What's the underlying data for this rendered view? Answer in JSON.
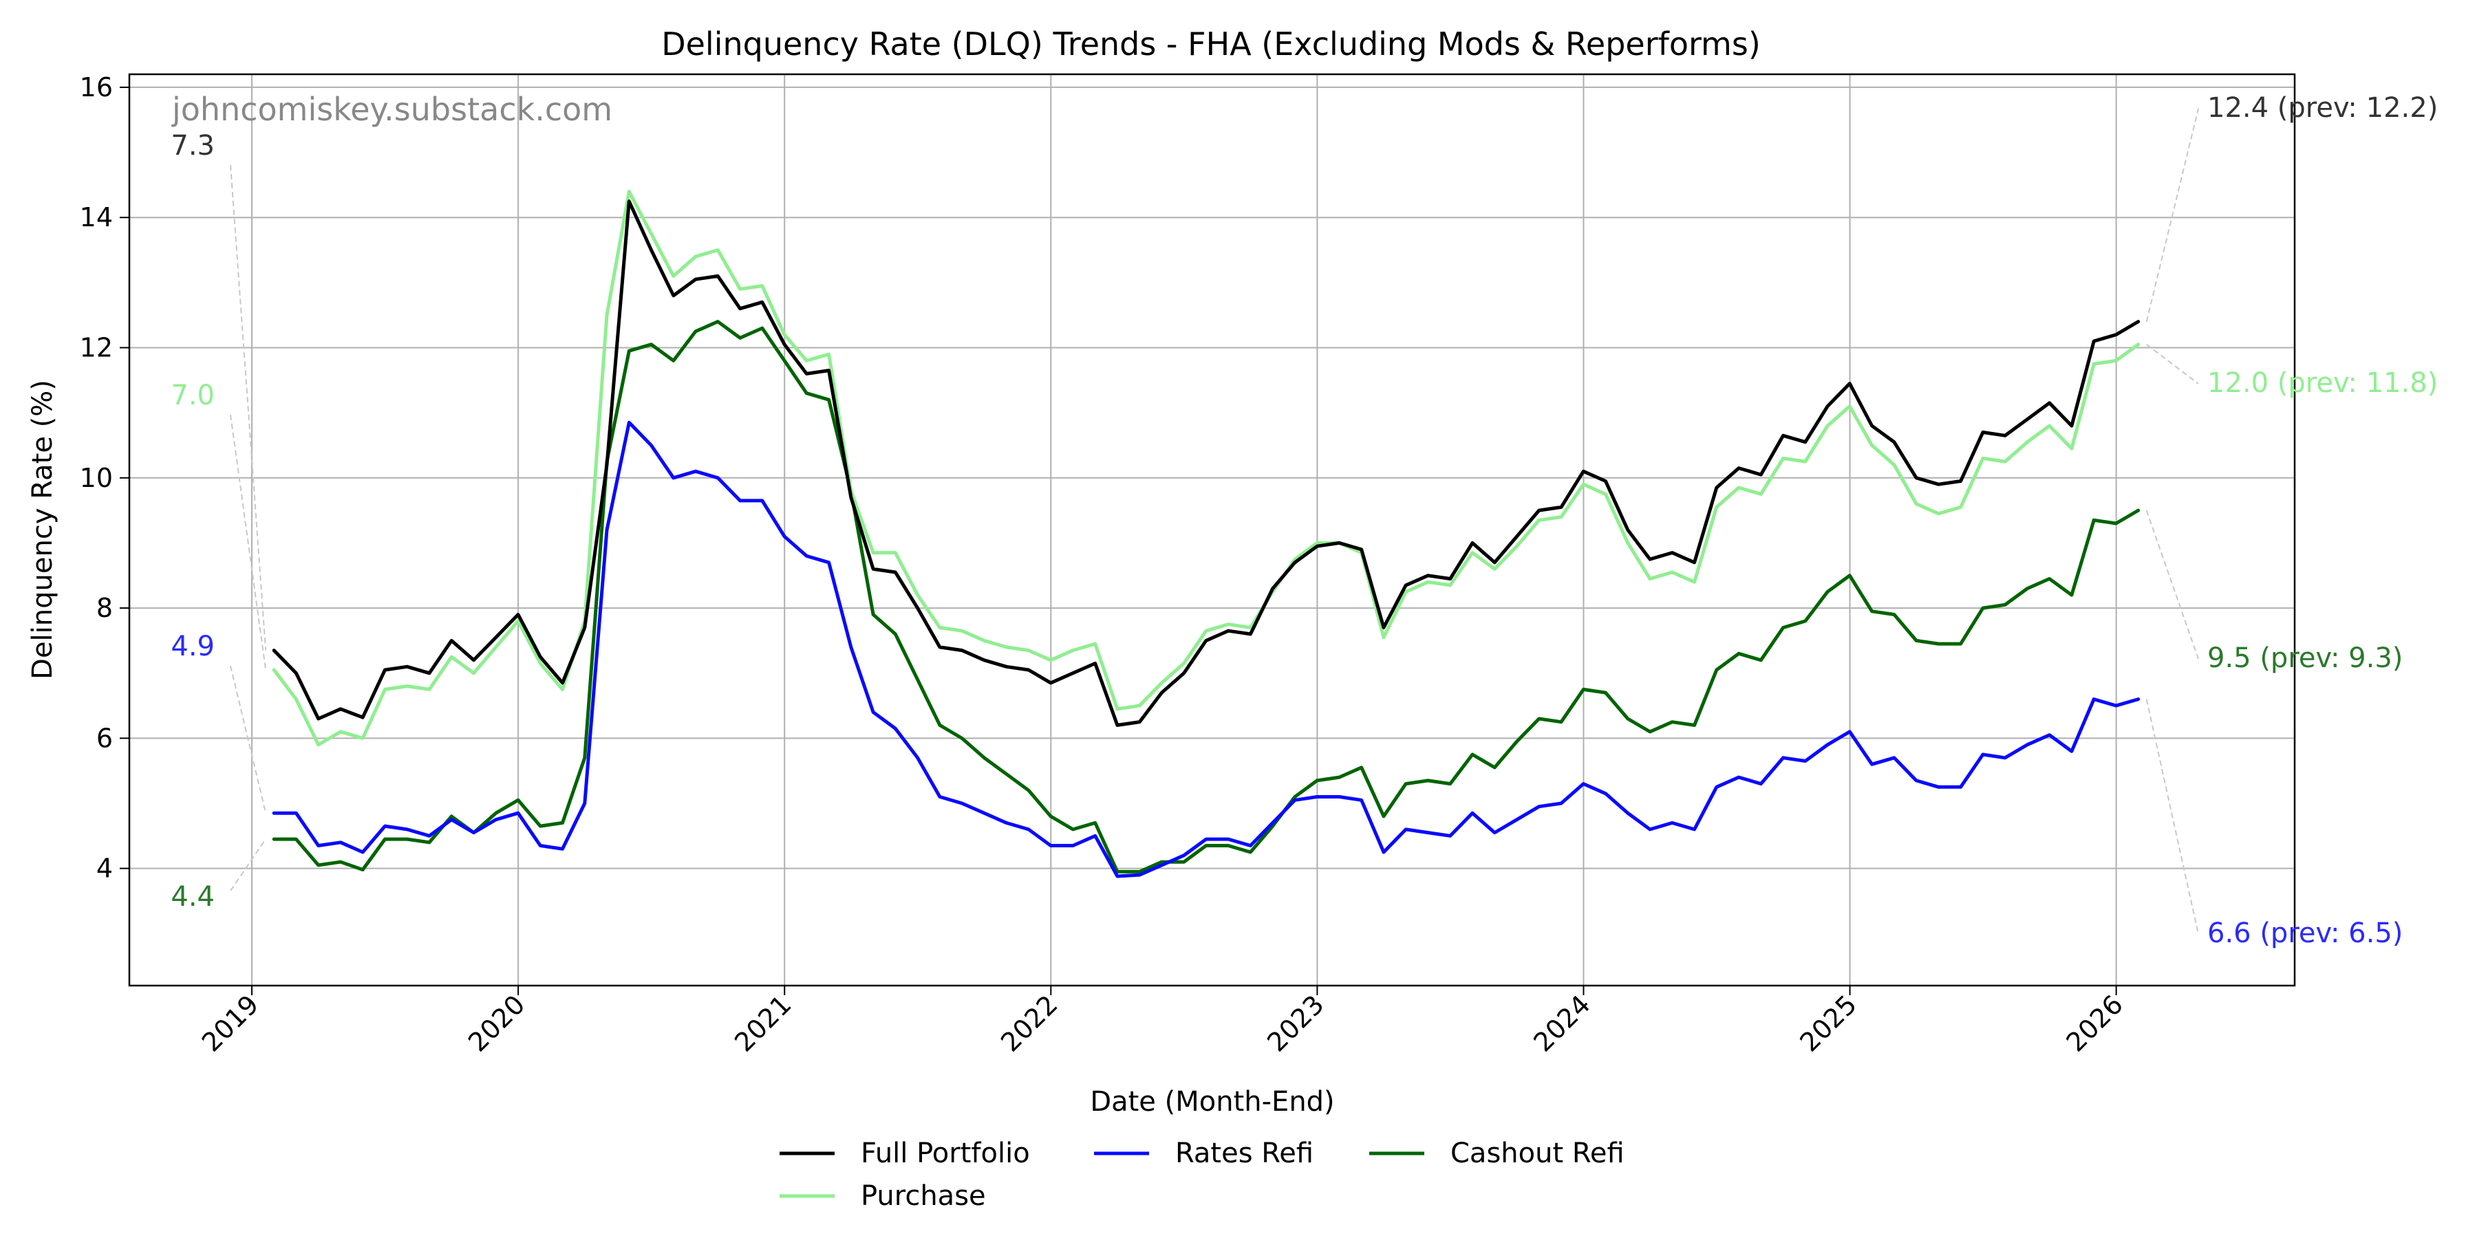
{
  "chart_data": {
    "type": "line",
    "title": "Delinquency Rate (DLQ) Trends - FHA (Excluding Mods & Reperforms)",
    "xlabel": "Date (Month-End)",
    "ylabel": "Delinquency Rate (%)",
    "watermark": "johncomiskey.substack.com",
    "xlim": [
      2018.54,
      2026.67
    ],
    "ylim": [
      2.2,
      16.2
    ],
    "grid": true,
    "legend_position": "bottom-center",
    "x_ticks": [
      2019,
      2020,
      2021,
      2022,
      2023,
      2024,
      2025,
      2026
    ],
    "x_tick_labels": [
      "2019",
      "2020",
      "2021",
      "2022",
      "2023",
      "2024",
      "2025",
      "2026"
    ],
    "y_ticks": [
      4,
      6,
      8,
      10,
      12,
      14,
      16
    ],
    "y_tick_labels": [
      "4",
      "6",
      "8",
      "10",
      "12",
      "14",
      "16"
    ],
    "x_start": 2019.083,
    "x_step": 0.08333,
    "series": [
      {
        "name": "Full Portfolio",
        "color": "#000000",
        "values": [
          7.35,
          7.0,
          6.3,
          6.45,
          6.32,
          7.05,
          7.1,
          7.0,
          7.5,
          7.2,
          7.55,
          7.9,
          7.25,
          6.85,
          7.7,
          10.2,
          14.25,
          13.5,
          12.8,
          13.05,
          13.1,
          12.6,
          12.7,
          12.05,
          11.6,
          11.65,
          9.7,
          8.6,
          8.55,
          8.0,
          7.4,
          7.35,
          7.2,
          7.1,
          7.05,
          6.85,
          7.0,
          7.15,
          6.2,
          6.25,
          6.7,
          7.0,
          7.5,
          7.65,
          7.6,
          8.3,
          8.7,
          8.95,
          9.0,
          8.9,
          7.7,
          8.35,
          8.5,
          8.45,
          9.0,
          8.7,
          9.1,
          9.5,
          9.55,
          10.1,
          9.95,
          9.2,
          8.75,
          8.85,
          8.7,
          9.85,
          10.15,
          10.05,
          10.65,
          10.55,
          11.1,
          11.45,
          10.8,
          10.55,
          10.0,
          9.9,
          9.95,
          10.7,
          10.65,
          10.9,
          11.15,
          10.8,
          12.1,
          12.2,
          12.4
        ],
        "annotation": "12.4 (prev: 12.2)",
        "start_label": "7.3"
      },
      {
        "name": "Rates Refi",
        "color": "#0a0aff",
        "values": [
          4.85,
          4.85,
          4.35,
          4.4,
          4.25,
          4.65,
          4.6,
          4.5,
          4.75,
          4.55,
          4.75,
          4.85,
          4.35,
          4.3,
          5.0,
          9.2,
          10.85,
          10.5,
          10.0,
          10.1,
          10.0,
          9.65,
          9.65,
          9.1,
          8.8,
          8.7,
          7.4,
          6.4,
          6.15,
          5.7,
          5.1,
          5.0,
          4.85,
          4.7,
          4.6,
          4.35,
          4.35,
          4.5,
          3.88,
          3.9,
          4.05,
          4.2,
          4.45,
          4.45,
          4.35,
          4.7,
          5.05,
          5.1,
          5.1,
          5.05,
          4.25,
          4.6,
          4.55,
          4.5,
          4.85,
          4.55,
          4.75,
          4.95,
          5.0,
          5.3,
          5.15,
          4.85,
          4.6,
          4.7,
          4.6,
          5.25,
          5.4,
          5.3,
          5.7,
          5.65,
          5.9,
          6.1,
          5.6,
          5.7,
          5.35,
          5.25,
          5.25,
          5.75,
          5.7,
          5.9,
          6.05,
          5.8,
          6.6,
          6.5,
          6.6
        ],
        "annotation": "6.6 (prev: 6.5)",
        "start_label": "4.9"
      },
      {
        "name": "Cashout Refi",
        "color": "#006400",
        "values": [
          4.45,
          4.45,
          4.05,
          4.1,
          3.98,
          4.45,
          4.45,
          4.4,
          4.8,
          4.55,
          4.85,
          5.05,
          4.65,
          4.7,
          5.7,
          10.25,
          11.95,
          12.05,
          11.8,
          12.25,
          12.4,
          12.15,
          12.3,
          11.8,
          11.3,
          11.2,
          9.8,
          7.9,
          7.6,
          6.9,
          6.2,
          6.0,
          5.7,
          5.45,
          5.2,
          4.8,
          4.6,
          4.7,
          3.95,
          3.95,
          4.1,
          4.1,
          4.35,
          4.35,
          4.25,
          4.65,
          5.1,
          5.35,
          5.4,
          5.55,
          4.8,
          5.3,
          5.35,
          5.3,
          5.75,
          5.55,
          5.95,
          6.3,
          6.25,
          6.75,
          6.7,
          6.3,
          6.1,
          6.25,
          6.2,
          7.05,
          7.3,
          7.2,
          7.7,
          7.8,
          8.25,
          8.5,
          7.95,
          7.9,
          7.5,
          7.45,
          7.45,
          8.0,
          8.05,
          8.3,
          8.45,
          8.2,
          9.35,
          9.3,
          9.5
        ],
        "annotation": "9.5 (prev: 9.3)",
        "start_label": "4.4"
      },
      {
        "name": "Purchase",
        "color": "#90ee90",
        "values": [
          7.05,
          6.6,
          5.9,
          6.1,
          6.0,
          6.75,
          6.8,
          6.75,
          7.25,
          7.0,
          7.4,
          7.8,
          7.15,
          6.75,
          7.8,
          12.5,
          14.4,
          13.75,
          13.1,
          13.4,
          13.5,
          12.9,
          12.95,
          12.2,
          11.8,
          11.9,
          9.8,
          8.85,
          8.85,
          8.2,
          7.7,
          7.65,
          7.5,
          7.4,
          7.35,
          7.2,
          7.35,
          7.45,
          6.45,
          6.5,
          6.85,
          7.15,
          7.65,
          7.75,
          7.7,
          8.25,
          8.75,
          9.0,
          9.0,
          8.85,
          7.55,
          8.25,
          8.4,
          8.35,
          8.85,
          8.6,
          8.95,
          9.35,
          9.4,
          9.9,
          9.75,
          9.0,
          8.45,
          8.55,
          8.4,
          9.55,
          9.85,
          9.75,
          10.3,
          10.25,
          10.8,
          11.1,
          10.5,
          10.2,
          9.6,
          9.45,
          9.55,
          10.3,
          10.25,
          10.55,
          10.8,
          10.45,
          11.75,
          11.8,
          12.05
        ],
        "annotation": "12.0 (prev: 11.8)",
        "start_label": "7.0"
      }
    ]
  }
}
